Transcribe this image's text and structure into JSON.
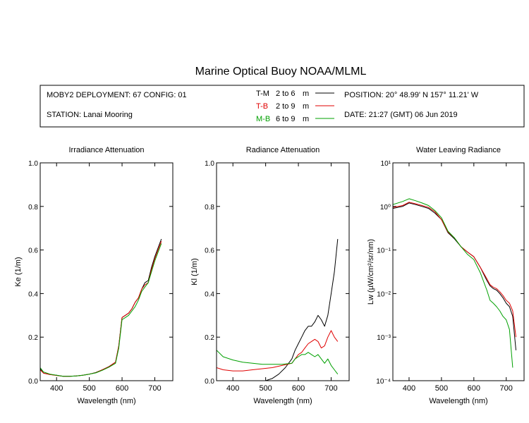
{
  "title": "Marine Optical Buoy NOAA/MLML",
  "info": {
    "deployment": "MOBY2 DEPLOYMENT: 67 CONFIG: 01",
    "station": "STATION: Lanai Mooring",
    "position": "POSITION: 20° 48.99' N   157° 11.21' W",
    "date": "DATE: 21:27 (GMT) 06 Jun 2019"
  },
  "legend": [
    {
      "code": "T-M",
      "range": "2 to 6",
      "unit": "m",
      "color": "#000000"
    },
    {
      "code": "T-B",
      "range": "2 to 9",
      "unit": "m",
      "color": "#e00000"
    },
    {
      "code": "M-B",
      "range": "6 to 9",
      "unit": "m",
      "color": "#00a000"
    }
  ],
  "colors": {
    "tm": "#000000",
    "tb": "#e00000",
    "mb": "#00a000"
  },
  "chart_data": [
    {
      "type": "line",
      "title": "Irradiance Attenuation",
      "xlabel": "Wavelength (nm)",
      "ylabel": "Ke  (1/m)",
      "xlim": [
        350,
        755
      ],
      "ylim": [
        0,
        1
      ],
      "xticks": [
        400,
        500,
        600,
        700
      ],
      "yticks": [
        0,
        0.2,
        0.4,
        0.6,
        0.8,
        1.0
      ],
      "ytick_labels": [
        "0.0",
        "0.2",
        "0.4",
        "0.6",
        "0.8",
        "1.0"
      ],
      "series": [
        {
          "key": "tm",
          "x": [
            350,
            360,
            380,
            400,
            420,
            440,
            460,
            480,
            500,
            520,
            540,
            560,
            580,
            590,
            600,
            610,
            620,
            630,
            640,
            650,
            660,
            670,
            680,
            690,
            700,
            710,
            720
          ],
          "y": [
            0.055,
            0.035,
            0.028,
            0.025,
            0.02,
            0.02,
            0.022,
            0.025,
            0.03,
            0.038,
            0.05,
            0.065,
            0.085,
            0.16,
            0.29,
            0.3,
            0.31,
            0.33,
            0.36,
            0.38,
            0.42,
            0.45,
            0.46,
            0.52,
            0.57,
            0.61,
            0.65
          ]
        },
        {
          "key": "tb",
          "x": [
            350,
            360,
            380,
            400,
            420,
            440,
            460,
            480,
            500,
            520,
            540,
            560,
            580,
            590,
            600,
            610,
            620,
            630,
            640,
            650,
            660,
            670,
            680,
            690,
            700,
            710,
            720
          ],
          "y": [
            0.05,
            0.035,
            0.028,
            0.024,
            0.02,
            0.02,
            0.022,
            0.025,
            0.03,
            0.037,
            0.05,
            0.064,
            0.085,
            0.16,
            0.29,
            0.3,
            0.31,
            0.33,
            0.36,
            0.38,
            0.42,
            0.44,
            0.45,
            0.51,
            0.56,
            0.6,
            0.64
          ]
        },
        {
          "key": "mb",
          "x": [
            350,
            360,
            380,
            400,
            420,
            440,
            460,
            480,
            500,
            520,
            540,
            560,
            580,
            590,
            600,
            610,
            620,
            630,
            640,
            650,
            660,
            670,
            680,
            690,
            700,
            710,
            720
          ],
          "y": [
            0.06,
            0.04,
            0.03,
            0.025,
            0.02,
            0.02,
            0.022,
            0.025,
            0.03,
            0.036,
            0.048,
            0.062,
            0.08,
            0.15,
            0.28,
            0.29,
            0.3,
            0.32,
            0.34,
            0.37,
            0.41,
            0.43,
            0.45,
            0.5,
            0.55,
            0.59,
            0.63
          ]
        }
      ]
    },
    {
      "type": "line",
      "title": "Radiance Attenuation",
      "xlabel": "Wavelength (nm)",
      "ylabel": "Kl  (1/m)",
      "xlim": [
        350,
        755
      ],
      "ylim": [
        0,
        1
      ],
      "xticks": [
        400,
        500,
        600,
        700
      ],
      "yticks": [
        0,
        0.2,
        0.4,
        0.6,
        0.8,
        1.0
      ],
      "ytick_labels": [
        "0.0",
        "0.2",
        "0.4",
        "0.6",
        "0.8",
        "1.0"
      ],
      "series": [
        {
          "key": "tm",
          "x": [
            480,
            500,
            520,
            540,
            560,
            580,
            590,
            600,
            610,
            620,
            630,
            640,
            650,
            660,
            670,
            680,
            690,
            700,
            710,
            720
          ],
          "y": [
            0.0,
            0.0,
            0.01,
            0.03,
            0.06,
            0.1,
            0.14,
            0.17,
            0.2,
            0.23,
            0.25,
            0.25,
            0.27,
            0.3,
            0.28,
            0.25,
            0.3,
            0.4,
            0.5,
            0.65
          ]
        },
        {
          "key": "tb",
          "x": [
            350,
            370,
            400,
            430,
            460,
            490,
            520,
            550,
            580,
            590,
            600,
            610,
            620,
            630,
            640,
            650,
            660,
            670,
            680,
            690,
            700,
            710,
            720
          ],
          "y": [
            0.06,
            0.05,
            0.045,
            0.045,
            0.05,
            0.055,
            0.06,
            0.07,
            0.08,
            0.1,
            0.12,
            0.13,
            0.15,
            0.17,
            0.18,
            0.19,
            0.18,
            0.15,
            0.16,
            0.2,
            0.23,
            0.2,
            0.18
          ]
        },
        {
          "key": "mb",
          "x": [
            350,
            370,
            400,
            430,
            460,
            490,
            520,
            550,
            580,
            590,
            600,
            610,
            620,
            630,
            640,
            650,
            660,
            670,
            680,
            690,
            700,
            710,
            720
          ],
          "y": [
            0.14,
            0.11,
            0.095,
            0.085,
            0.08,
            0.075,
            0.075,
            0.075,
            0.08,
            0.1,
            0.11,
            0.12,
            0.12,
            0.13,
            0.12,
            0.11,
            0.12,
            0.1,
            0.08,
            0.1,
            0.07,
            0.05,
            0.03
          ]
        }
      ]
    },
    {
      "type": "line",
      "title": "Water Leaving Radiance",
      "xlabel": "Wavelength (nm)",
      "ylabel": "Lw  (µW/cm²/sr/nm)",
      "xlim": [
        350,
        755
      ],
      "ylim": [
        0.0001,
        10
      ],
      "yscale": "log",
      "xticks": [
        400,
        500,
        600,
        700
      ],
      "ytick_labels": [
        "10⁻⁴",
        "10⁻³",
        "10⁻²",
        "10⁻¹",
        "10⁰",
        "10¹"
      ],
      "series": [
        {
          "key": "tm",
          "x": [
            350,
            380,
            400,
            420,
            440,
            460,
            480,
            500,
            520,
            540,
            560,
            580,
            600,
            620,
            640,
            650,
            660,
            670,
            680,
            690,
            700,
            710,
            720,
            730
          ],
          "y": [
            0.9,
            1.0,
            1.2,
            1.1,
            1.0,
            0.9,
            0.7,
            0.5,
            0.25,
            0.18,
            0.12,
            0.09,
            0.07,
            0.04,
            0.02,
            0.015,
            0.013,
            0.012,
            0.01,
            0.008,
            0.006,
            0.005,
            0.003,
            0.0005
          ]
        },
        {
          "key": "tb",
          "x": [
            350,
            380,
            400,
            420,
            440,
            460,
            480,
            500,
            520,
            540,
            560,
            580,
            600,
            620,
            640,
            650,
            660,
            670,
            680,
            690,
            700,
            710,
            720,
            730
          ],
          "y": [
            0.95,
            1.05,
            1.25,
            1.15,
            1.05,
            0.95,
            0.75,
            0.5,
            0.26,
            0.19,
            0.12,
            0.09,
            0.07,
            0.04,
            0.022,
            0.016,
            0.014,
            0.013,
            0.011,
            0.009,
            0.007,
            0.006,
            0.004,
            0.001
          ]
        },
        {
          "key": "mb",
          "x": [
            350,
            380,
            400,
            420,
            440,
            460,
            480,
            500,
            520,
            540,
            560,
            580,
            600,
            620,
            640,
            650,
            660,
            670,
            680,
            690,
            700,
            710,
            720
          ],
          "y": [
            1.1,
            1.3,
            1.5,
            1.35,
            1.2,
            1.05,
            0.8,
            0.55,
            0.27,
            0.19,
            0.12,
            0.08,
            0.06,
            0.03,
            0.012,
            0.007,
            0.006,
            0.005,
            0.004,
            0.003,
            0.0025,
            0.0015,
            0.0002
          ]
        }
      ]
    }
  ]
}
